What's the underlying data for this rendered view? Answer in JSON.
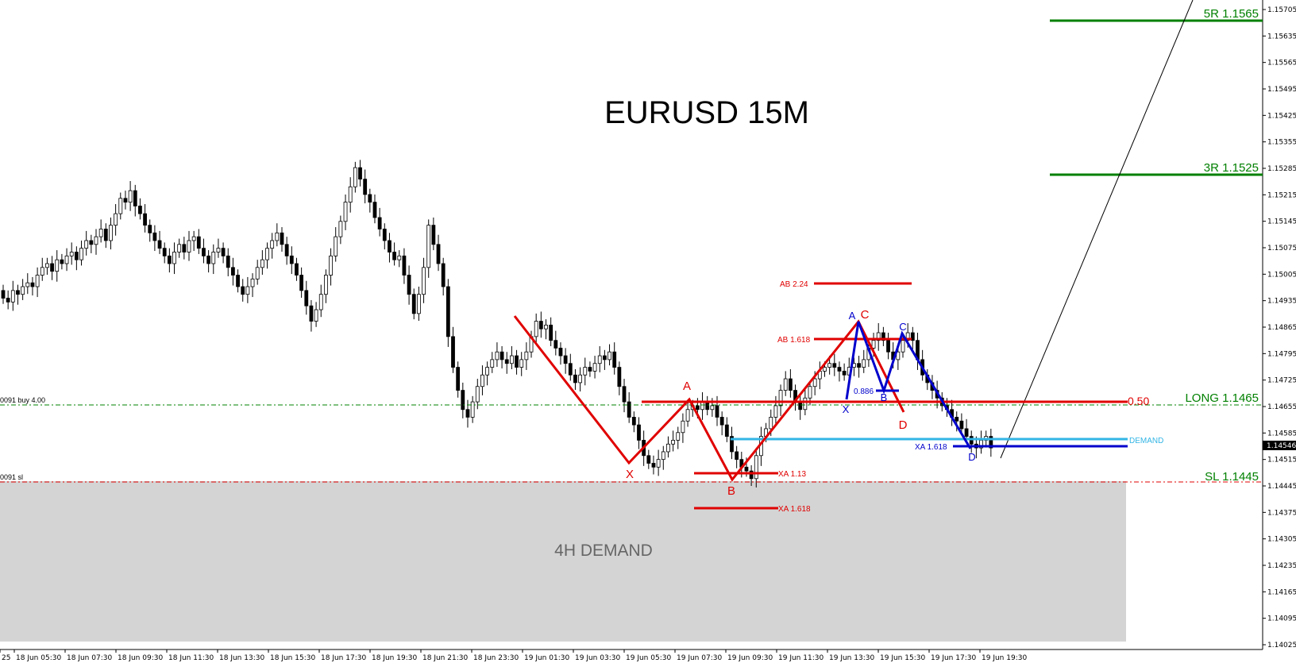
{
  "chart_data": {
    "type": "candlestick",
    "title": "EURUSD 15M",
    "ylim": [
      1.14025,
      1.157
    ],
    "y_ticks": [
      "1.15705",
      "1.15635",
      "1.15565",
      "1.15495",
      "1.15425",
      "1.15355",
      "1.15285",
      "1.15215",
      "1.15145",
      "1.15075",
      "1.15005",
      "1.14935",
      "1.14865",
      "1.14795",
      "1.14725",
      "1.14655",
      "1.14585",
      "1.14515",
      "1.14445",
      "1.14375",
      "1.14305",
      "1.14235",
      "1.14165",
      "1.14095",
      "1.14025"
    ],
    "x_ticks": [
      "25",
      "18 Jun 05:30",
      "18 Jun 07:30",
      "18 Jun 09:30",
      "18 Jun 11:30",
      "18 Jun 13:30",
      "18 Jun 15:30",
      "18 Jun 17:30",
      "18 Jun 19:30",
      "18 Jun 21:30",
      "18 Jun 23:30",
      "19 Jun 01:30",
      "19 Jun 03:30",
      "19 Jun 05:30",
      "19 Jun 07:30",
      "19 Jun 09:30",
      "19 Jun 11:30",
      "19 Jun 13:30",
      "19 Jun 15:30",
      "19 Jun 17:30",
      "19 Jun 19:30"
    ],
    "current_price": "1.14546",
    "current_price_value": 1.14546,
    "up_color": "#ffffff",
    "down_color": "#000000",
    "candle_closes": [
      1.1494,
      1.1493,
      1.1496,
      1.1495,
      1.1497,
      1.1498,
      1.1497,
      1.15,
      1.1502,
      1.1503,
      1.1501,
      1.1504,
      1.1503,
      1.1505,
      1.1506,
      1.1504,
      1.1507,
      1.1509,
      1.1508,
      1.151,
      1.1512,
      1.1509,
      1.1513,
      1.1516,
      1.152,
      1.1519,
      1.1522,
      1.1518,
      1.1516,
      1.1513,
      1.1511,
      1.1509,
      1.1507,
      1.1505,
      1.1503,
      1.1506,
      1.1508,
      1.1506,
      1.1509,
      1.151,
      1.1507,
      1.1505,
      1.1503,
      1.1506,
      1.1507,
      1.1505,
      1.1502,
      1.15,
      1.1497,
      1.1495,
      1.1497,
      1.1499,
      1.1502,
      1.1504,
      1.1507,
      1.1509,
      1.1511,
      1.1508,
      1.1505,
      1.1503,
      1.15,
      1.1496,
      1.1492,
      1.1488,
      1.1491,
      1.1495,
      1.15,
      1.1505,
      1.151,
      1.1514,
      1.1519,
      1.1523,
      1.1528,
      1.1525,
      1.1521,
      1.1519,
      1.1515,
      1.1512,
      1.1509,
      1.1506,
      1.1504,
      1.1505,
      1.15,
      1.1495,
      1.149,
      1.1495,
      1.1502,
      1.1513,
      1.1508,
      1.1503,
      1.1497,
      1.1484,
      1.1476,
      1.147,
      1.1465,
      1.1463,
      1.1467,
      1.1471,
      1.1474,
      1.1476,
      1.1478,
      1.148,
      1.1478,
      1.1477,
      1.1479,
      1.1476,
      1.1478,
      1.148,
      1.1484,
      1.1488,
      1.1486,
      1.1487,
      1.1483,
      1.1481,
      1.1479,
      1.1477,
      1.1474,
      1.1472,
      1.1474,
      1.1476,
      1.1475,
      1.1477,
      1.1479,
      1.1478,
      1.148,
      1.1476,
      1.1471,
      1.1467,
      1.1463,
      1.1461,
      1.1457,
      1.1453,
      1.1451,
      1.145,
      1.1452,
      1.1454,
      1.1456,
      1.1457,
      1.1459,
      1.1462,
      1.1465,
      1.1466,
      1.1465,
      1.1467,
      1.1465,
      1.1466,
      1.1463,
      1.1461,
      1.1458,
      1.1454,
      1.1452,
      1.145,
      1.1449,
      1.1447,
      1.1453,
      1.1458,
      1.146,
      1.1463,
      1.1466,
      1.147,
      1.1473,
      1.147,
      1.1467,
      1.1465,
      1.1468,
      1.1471,
      1.1473,
      1.1475,
      1.1476,
      1.1477,
      1.1476,
      1.1475,
      1.1474,
      1.1476,
      1.1477,
      1.1476,
      1.1478,
      1.1481,
      1.1483,
      1.1485,
      1.1483,
      1.148,
      1.1478,
      1.148,
      1.1483,
      1.1485,
      1.1483,
      1.1478,
      1.1474,
      1.1472,
      1.147,
      1.1468,
      1.1466,
      1.1465,
      1.1463,
      1.1462,
      1.146,
      1.1458,
      1.1456,
      1.1455,
      1.1457,
      1.1458,
      1.1455
    ],
    "annotations": {
      "levels": [
        {
          "label": "5R 1.1565",
          "value": 1.1565,
          "color": "#008000"
        },
        {
          "label": "3R 1.1525",
          "value": 1.1525,
          "color": "#008000"
        },
        {
          "label": "LONG 1.1465",
          "value": 1.1465,
          "color": "#008000"
        },
        {
          "label": "SL 1.1445",
          "value": 1.1445,
          "color": "#008000"
        }
      ],
      "entry_label": "0091 buy 4.00",
      "sl_label": "0091 sl",
      "demand_zone_label": "4H DEMAND",
      "demand_line_label": "DEMAND",
      "half_label": "0.50",
      "red_pattern": {
        "points": [
          "X",
          "A",
          "B",
          "C",
          "D"
        ],
        "labels": {
          "ab224": "AB 2.24",
          "ab1618": "AB 1.618",
          "xa113": "XA 1.13",
          "xa1618": "XA 1.618"
        }
      },
      "blue_pattern": {
        "points": [
          "X",
          "A",
          "B",
          "C",
          "D"
        ],
        "labels": {
          "ret": "0.886",
          "xa1618": "XA 1.618"
        }
      },
      "colors": {
        "red": "#e00000",
        "blue": "#0000cc",
        "cyan": "#33b5e5",
        "green": "#008000",
        "zone": "#d4d4d4"
      }
    }
  }
}
